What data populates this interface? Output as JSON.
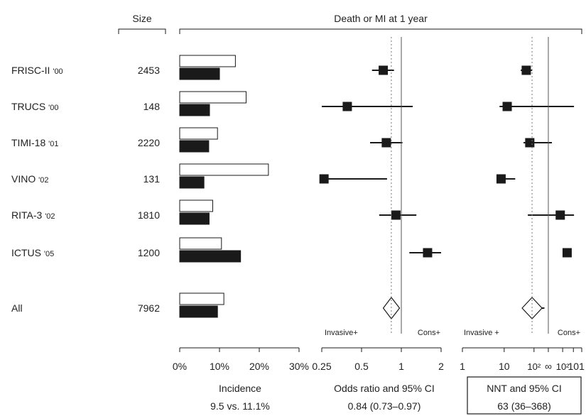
{
  "chart_data": {
    "type": "forest",
    "title": "Death or MI at 1 year",
    "size_header": "Size",
    "colors": {
      "ink": "#1a1a1a",
      "reference_line": "#555555",
      "bar_invasive": "#ffffff",
      "bar_conservative": "#1a1a1a"
    },
    "trials": [
      {
        "name": "FRISC-II",
        "year": "'00",
        "size": "2453",
        "incidence_light": 14.0,
        "incidence_dark": 10.0,
        "or": 0.73,
        "or_ci": [
          0.6,
          0.88
        ],
        "nnt": 30,
        "nnt_ci": [
          20,
          65
        ]
      },
      {
        "name": "TRUCS",
        "year": "'00",
        "size": "148",
        "incidence_light": 16.7,
        "incidence_dark": 7.5,
        "or": 0.39,
        "or_ci": [
          0.25,
          1.22
        ],
        "nnt": 11,
        "nnt_ci": [
          5,
          -6
        ]
      },
      {
        "name": "TIMI-18",
        "year": "'01",
        "size": "2220",
        "incidence_light": 9.5,
        "incidence_dark": 7.3,
        "or": 0.77,
        "or_ci": [
          0.58,
          1.02
        ],
        "nnt": 44,
        "nnt_ci": [
          24,
          -400
        ]
      },
      {
        "name": "VINO",
        "year": "'02",
        "size": "131",
        "incidence_light": 22.3,
        "incidence_dark": 6.1,
        "or": 0.26,
        "or_ci": [
          0.26,
          0.78
        ],
        "nnt": 6,
        "nnt_ci": [
          4,
          15
        ]
      },
      {
        "name": "RITA-3",
        "year": "'02",
        "size": "1810",
        "incidence_light": 8.3,
        "incidence_dark": 7.4,
        "or": 0.91,
        "or_ci": [
          0.68,
          1.3
        ],
        "nnt": -120,
        "nnt_ci": [
          35,
          -6
        ]
      },
      {
        "name": "ICTUS",
        "year": "'05",
        "size": "1200",
        "incidence_light": 10.5,
        "incidence_dark": 15.3,
        "or": 1.58,
        "or_ci": [
          1.15,
          2.0
        ],
        "nnt": -21,
        "nnt_ci": [
          -13,
          -47
        ]
      }
    ],
    "pooled": {
      "name": "All",
      "size": "7962",
      "incidence_light": 11.1,
      "incidence_dark": 9.5,
      "or": 0.84,
      "or_ci": [
        0.73,
        0.97
      ],
      "nnt": 63,
      "nnt_ci": [
        36,
        368
      ]
    },
    "panels": {
      "incidence": {
        "xlim": [
          0,
          30
        ],
        "ticks": [
          0,
          10,
          20,
          30
        ],
        "tick_labels": [
          "0%",
          "10%",
          "20%",
          "30%"
        ],
        "label": "Incidence",
        "summary": "9.5 vs. 11.1%"
      },
      "odds_ratio": {
        "scale": "log",
        "xlim": [
          0.25,
          2
        ],
        "ticks": [
          0.25,
          0.5,
          1,
          2
        ],
        "tick_labels": [
          "0.25",
          "0.5",
          "1",
          "2"
        ],
        "reference": 1,
        "pooled_reference": 0.84,
        "label": "Odds ratio and 95% CI",
        "summary": "0.84 (0.73–0.97)",
        "favours_left": "Invasive+",
        "favours_right": "Cons+"
      },
      "nnt": {
        "scale": "reciprocal",
        "ticks": [
          1,
          10,
          100,
          "inf",
          -100,
          -10,
          -1
        ],
        "tick_labels": [
          "1",
          "10",
          "10²",
          "∞",
          "10²",
          "10",
          "1"
        ],
        "pooled_reference": 63,
        "label": "NNT and 95% CI",
        "summary": "63 (36–368)",
        "favours_left": "Invasive +",
        "favours_right": "Cons+"
      }
    }
  }
}
